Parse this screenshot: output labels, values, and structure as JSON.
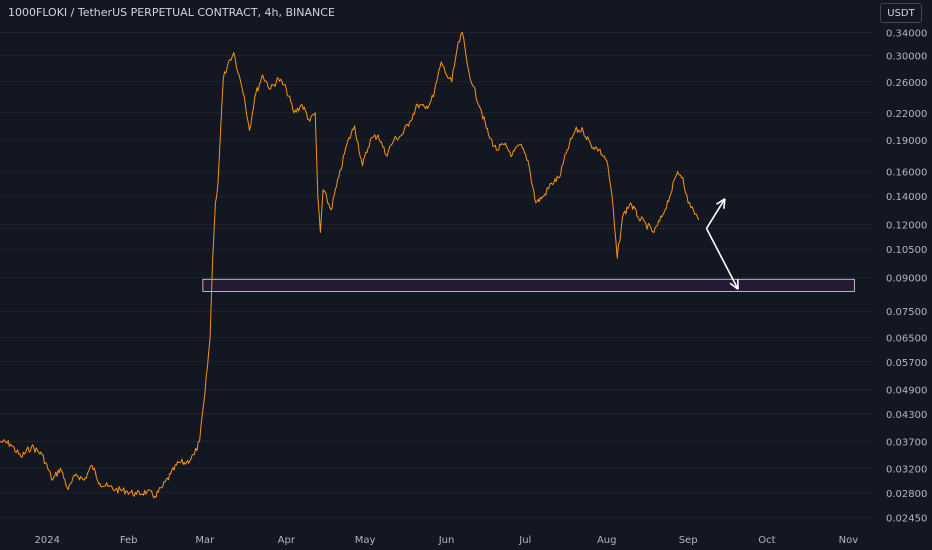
{
  "header": {
    "title": "1000FLOKI / TetherUS PERPETUAL CONTRACT, 4h, BINANCE",
    "currency_button": "USDT"
  },
  "colors": {
    "background": "#131722",
    "price_line": "#f7931a",
    "axis_text": "#b2b5be",
    "zone_fill": "#2a1a3a",
    "zone_border": "#e0e0e0",
    "arrow": "#ffffff"
  },
  "chart_data": {
    "type": "line",
    "title": "1000FLOKI / TetherUS PERPETUAL CONTRACT, 4h, BINANCE",
    "xlabel": "",
    "ylabel": "",
    "y_scale": "log",
    "ylim": [
      0.0234,
      0.36
    ],
    "xlim": [
      "2023-12-14",
      "2024-11-10"
    ],
    "y_ticks": [
      "0.34000",
      "0.30000",
      "0.26000",
      "0.22000",
      "0.19000",
      "0.16000",
      "0.14000",
      "0.12000",
      "0.10500",
      "0.09000",
      "0.07500",
      "0.06500",
      "0.05700",
      "0.04900",
      "0.04300",
      "0.03700",
      "0.03200",
      "0.02800",
      "0.02450"
    ],
    "x_ticks": [
      {
        "label": "2024",
        "date": "2024-01-01"
      },
      {
        "label": "Feb",
        "date": "2024-02-01"
      },
      {
        "label": "Mar",
        "date": "2024-03-01"
      },
      {
        "label": "Apr",
        "date": "2024-04-01"
      },
      {
        "label": "May",
        "date": "2024-05-01"
      },
      {
        "label": "Jun",
        "date": "2024-06-01"
      },
      {
        "label": "Jul",
        "date": "2024-07-01"
      },
      {
        "label": "Aug",
        "date": "2024-08-01"
      },
      {
        "label": "Sep",
        "date": "2024-09-01"
      },
      {
        "label": "Oct",
        "date": "2024-10-01"
      },
      {
        "label": "Nov",
        "date": "2024-11-01"
      }
    ],
    "series": [
      {
        "points": [
          [
            "2023-12-14",
            0.037
          ],
          [
            "2023-12-18",
            0.0365
          ],
          [
            "2023-12-22",
            0.034
          ],
          [
            "2023-12-26",
            0.036
          ],
          [
            "2023-12-30",
            0.0345
          ],
          [
            "2024-01-03",
            0.03
          ],
          [
            "2024-01-06",
            0.032
          ],
          [
            "2024-01-09",
            0.0285
          ],
          [
            "2024-01-12",
            0.031
          ],
          [
            "2024-01-15",
            0.03
          ],
          [
            "2024-01-18",
            0.0325
          ],
          [
            "2024-01-21",
            0.0295
          ],
          [
            "2024-01-24",
            0.029
          ],
          [
            "2024-01-27",
            0.0285
          ],
          [
            "2024-01-31",
            0.0283
          ],
          [
            "2024-02-04",
            0.0278
          ],
          [
            "2024-02-08",
            0.0282
          ],
          [
            "2024-02-11",
            0.0275
          ],
          [
            "2024-02-14",
            0.029
          ],
          [
            "2024-02-17",
            0.031
          ],
          [
            "2024-02-20",
            0.033
          ],
          [
            "2024-02-23",
            0.033
          ],
          [
            "2024-02-26",
            0.0345
          ],
          [
            "2024-02-28",
            0.037
          ],
          [
            "2024-03-01",
            0.048
          ],
          [
            "2024-03-03",
            0.065
          ],
          [
            "2024-03-04",
            0.1
          ],
          [
            "2024-03-05",
            0.135
          ],
          [
            "2024-03-06",
            0.15
          ],
          [
            "2024-03-07",
            0.2
          ],
          [
            "2024-03-08",
            0.265
          ],
          [
            "2024-03-10",
            0.29
          ],
          [
            "2024-03-12",
            0.305
          ],
          [
            "2024-03-14",
            0.27
          ],
          [
            "2024-03-16",
            0.24
          ],
          [
            "2024-03-18",
            0.2
          ],
          [
            "2024-03-20",
            0.24
          ],
          [
            "2024-03-23",
            0.27
          ],
          [
            "2024-03-26",
            0.25
          ],
          [
            "2024-03-29",
            0.265
          ],
          [
            "2024-04-01",
            0.25
          ],
          [
            "2024-04-04",
            0.22
          ],
          [
            "2024-04-07",
            0.23
          ],
          [
            "2024-04-10",
            0.21
          ],
          [
            "2024-04-12",
            0.22
          ],
          [
            "2024-04-13",
            0.14
          ],
          [
            "2024-04-14",
            0.115
          ],
          [
            "2024-04-15",
            0.145
          ],
          [
            "2024-04-18",
            0.13
          ],
          [
            "2024-04-21",
            0.155
          ],
          [
            "2024-04-24",
            0.185
          ],
          [
            "2024-04-27",
            0.205
          ],
          [
            "2024-04-30",
            0.165
          ],
          [
            "2024-05-03",
            0.19
          ],
          [
            "2024-05-06",
            0.195
          ],
          [
            "2024-05-09",
            0.175
          ],
          [
            "2024-05-12",
            0.19
          ],
          [
            "2024-05-15",
            0.195
          ],
          [
            "2024-05-18",
            0.21
          ],
          [
            "2024-05-21",
            0.23
          ],
          [
            "2024-05-24",
            0.225
          ],
          [
            "2024-05-27",
            0.24
          ],
          [
            "2024-05-30",
            0.29
          ],
          [
            "2024-06-01",
            0.27
          ],
          [
            "2024-06-03",
            0.26
          ],
          [
            "2024-06-05",
            0.31
          ],
          [
            "2024-06-07",
            0.34
          ],
          [
            "2024-06-09",
            0.285
          ],
          [
            "2024-06-11",
            0.255
          ],
          [
            "2024-06-14",
            0.225
          ],
          [
            "2024-06-17",
            0.195
          ],
          [
            "2024-06-20",
            0.18
          ],
          [
            "2024-06-23",
            0.185
          ],
          [
            "2024-06-26",
            0.175
          ],
          [
            "2024-06-29",
            0.185
          ],
          [
            "2024-07-02",
            0.17
          ],
          [
            "2024-07-05",
            0.135
          ],
          [
            "2024-07-08",
            0.14
          ],
          [
            "2024-07-11",
            0.15
          ],
          [
            "2024-07-14",
            0.155
          ],
          [
            "2024-07-17",
            0.18
          ],
          [
            "2024-07-20",
            0.2
          ],
          [
            "2024-07-23",
            0.2
          ],
          [
            "2024-07-26",
            0.185
          ],
          [
            "2024-07-29",
            0.18
          ],
          [
            "2024-08-01",
            0.17
          ],
          [
            "2024-08-03",
            0.14
          ],
          [
            "2024-08-05",
            0.1
          ],
          [
            "2024-08-07",
            0.125
          ],
          [
            "2024-08-10",
            0.135
          ],
          [
            "2024-08-13",
            0.125
          ],
          [
            "2024-08-16",
            0.12
          ],
          [
            "2024-08-19",
            0.115
          ],
          [
            "2024-08-22",
            0.125
          ],
          [
            "2024-08-25",
            0.14
          ],
          [
            "2024-08-28",
            0.16
          ],
          [
            "2024-08-30",
            0.155
          ],
          [
            "2024-09-01",
            0.135
          ],
          [
            "2024-09-03",
            0.13
          ],
          [
            "2024-09-05",
            0.123
          ]
        ]
      }
    ],
    "support_zone": {
      "start": "2024-03-01",
      "end": "2024-11-01",
      "low": 0.0835,
      "high": 0.0892
    },
    "current_price": 0.1175,
    "arrows": [
      {
        "from": {
          "date": "2024-09-08",
          "price": 0.1175
        },
        "to": {
          "date": "2024-09-15",
          "price": 0.138
        }
      },
      {
        "from": {
          "date": "2024-09-08",
          "price": 0.1175
        },
        "to": {
          "date": "2024-09-20",
          "price": 0.0845
        }
      }
    ]
  }
}
